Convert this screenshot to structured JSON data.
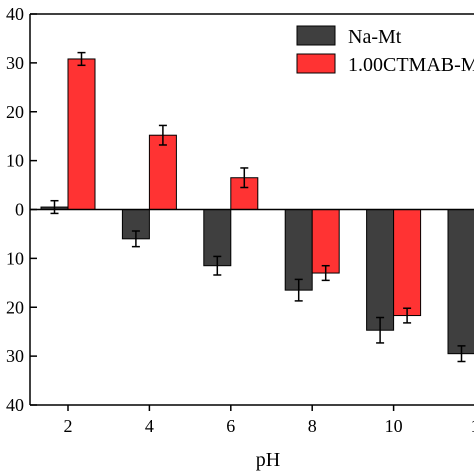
{
  "chart_data": {
    "type": "bar",
    "xlabel": "pH",
    "ylabel": "",
    "ylim": [
      -40,
      40
    ],
    "y_ticks": [
      40,
      30,
      20,
      10,
      0,
      -10,
      -20,
      -30,
      -40
    ],
    "y_tick_labels": [
      "40",
      "30",
      "20",
      "10",
      "0",
      "10",
      "20",
      "30",
      "40"
    ],
    "categories": [
      "2",
      "4",
      "6",
      "8",
      "10",
      "1"
    ],
    "legend_position": "top-right",
    "series": [
      {
        "name": "Na-Mt",
        "color": "#3f3f3f",
        "values": [
          0.5,
          -6.0,
          -11.5,
          -16.5,
          -24.7,
          -29.5
        ],
        "errors": [
          1.3,
          1.6,
          1.9,
          2.2,
          2.6,
          1.6
        ]
      },
      {
        "name": "1.00CTMAB-M",
        "color": "#ff3333",
        "values": [
          30.8,
          15.2,
          6.5,
          -13.0,
          -21.7,
          null
        ],
        "errors": [
          1.3,
          2.0,
          2.0,
          1.5,
          1.5,
          null
        ]
      }
    ]
  }
}
